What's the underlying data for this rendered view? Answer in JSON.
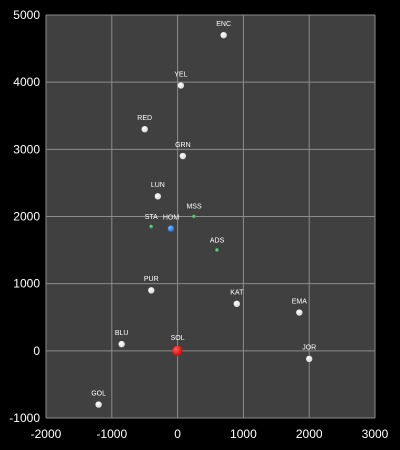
{
  "chart_data": {
    "type": "scatter",
    "xlim": [
      -2000,
      3000
    ],
    "ylim": [
      -1000,
      5000
    ],
    "x_ticks": [
      -2000,
      -1000,
      0,
      1000,
      2000,
      3000
    ],
    "y_ticks": [
      -1000,
      0,
      1000,
      2000,
      3000,
      4000,
      5000
    ],
    "grid": true,
    "colors": {
      "background": "#000000",
      "plot_area": "#404040",
      "grid": "#8c8c8c",
      "default_point": "#d9d9d9",
      "sun": "#e00000",
      "home": "#1e73d8",
      "station": "#2e9e4f"
    },
    "points": [
      {
        "label": "ENC",
        "x": 700,
        "y": 4700,
        "kind": "default"
      },
      {
        "label": "YEL",
        "x": 50,
        "y": 3950,
        "kind": "default"
      },
      {
        "label": "RED",
        "x": -500,
        "y": 3300,
        "kind": "default"
      },
      {
        "label": "GRN",
        "x": 80,
        "y": 2900,
        "kind": "default"
      },
      {
        "label": "LUN",
        "x": -300,
        "y": 2300,
        "kind": "default"
      },
      {
        "label": "MSS",
        "x": 250,
        "y": 2000,
        "kind": "station"
      },
      {
        "label": "STA",
        "x": -400,
        "y": 1850,
        "kind": "station"
      },
      {
        "label": "HOM",
        "x": -100,
        "y": 1820,
        "kind": "home"
      },
      {
        "label": "ADS",
        "x": 600,
        "y": 1500,
        "kind": "station"
      },
      {
        "label": "PUR",
        "x": -400,
        "y": 900,
        "kind": "default"
      },
      {
        "label": "KAT",
        "x": 900,
        "y": 700,
        "kind": "default"
      },
      {
        "label": "EMA",
        "x": 1850,
        "y": 570,
        "kind": "default"
      },
      {
        "label": "BLU",
        "x": -850,
        "y": 100,
        "kind": "default"
      },
      {
        "label": "SOL",
        "x": 0,
        "y": 0,
        "kind": "sun"
      },
      {
        "label": "JOR",
        "x": 2000,
        "y": -120,
        "kind": "default"
      },
      {
        "label": "GOL",
        "x": -1200,
        "y": -800,
        "kind": "default"
      }
    ]
  }
}
